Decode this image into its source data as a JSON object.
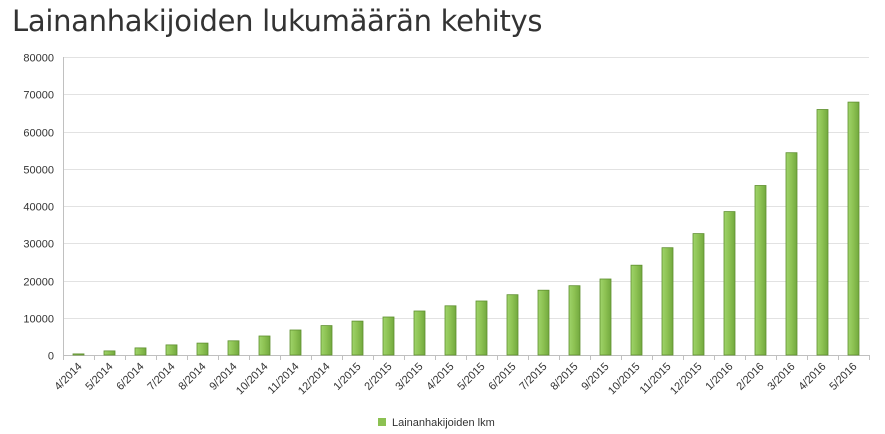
{
  "chart_data": {
    "type": "bar",
    "title": "Lainanhakijoiden lukumäärän kehitys",
    "categories": [
      "4/2014",
      "5/2014",
      "6/2014",
      "7/2014",
      "8/2014",
      "9/2014",
      "10/2014",
      "11/2014",
      "12/2014",
      "1/2015",
      "2/2015",
      "3/2015",
      "4/2015",
      "5/2015",
      "6/2015",
      "7/2015",
      "8/2015",
      "9/2015",
      "10/2015",
      "11/2015",
      "12/2015",
      "1/2016",
      "2/2016",
      "3/2016",
      "4/2016",
      "5/2016"
    ],
    "series": [
      {
        "name": "Lainanhakijoiden lkm",
        "color": "#8cc152",
        "values": [
          300,
          1100,
          1900,
          2700,
          3200,
          3800,
          5100,
          6700,
          7900,
          9100,
          10200,
          11800,
          13200,
          14500,
          16200,
          17400,
          18600,
          20400,
          24100,
          28800,
          32600,
          38500,
          45500,
          54300,
          65900,
          67900
        ]
      }
    ],
    "ylim": [
      0,
      80000
    ],
    "yticks": [
      "0",
      "10000",
      "20000",
      "30000",
      "40000",
      "50000",
      "60000",
      "70000",
      "80000"
    ],
    "grid": true,
    "legend": "bottom-center"
  }
}
